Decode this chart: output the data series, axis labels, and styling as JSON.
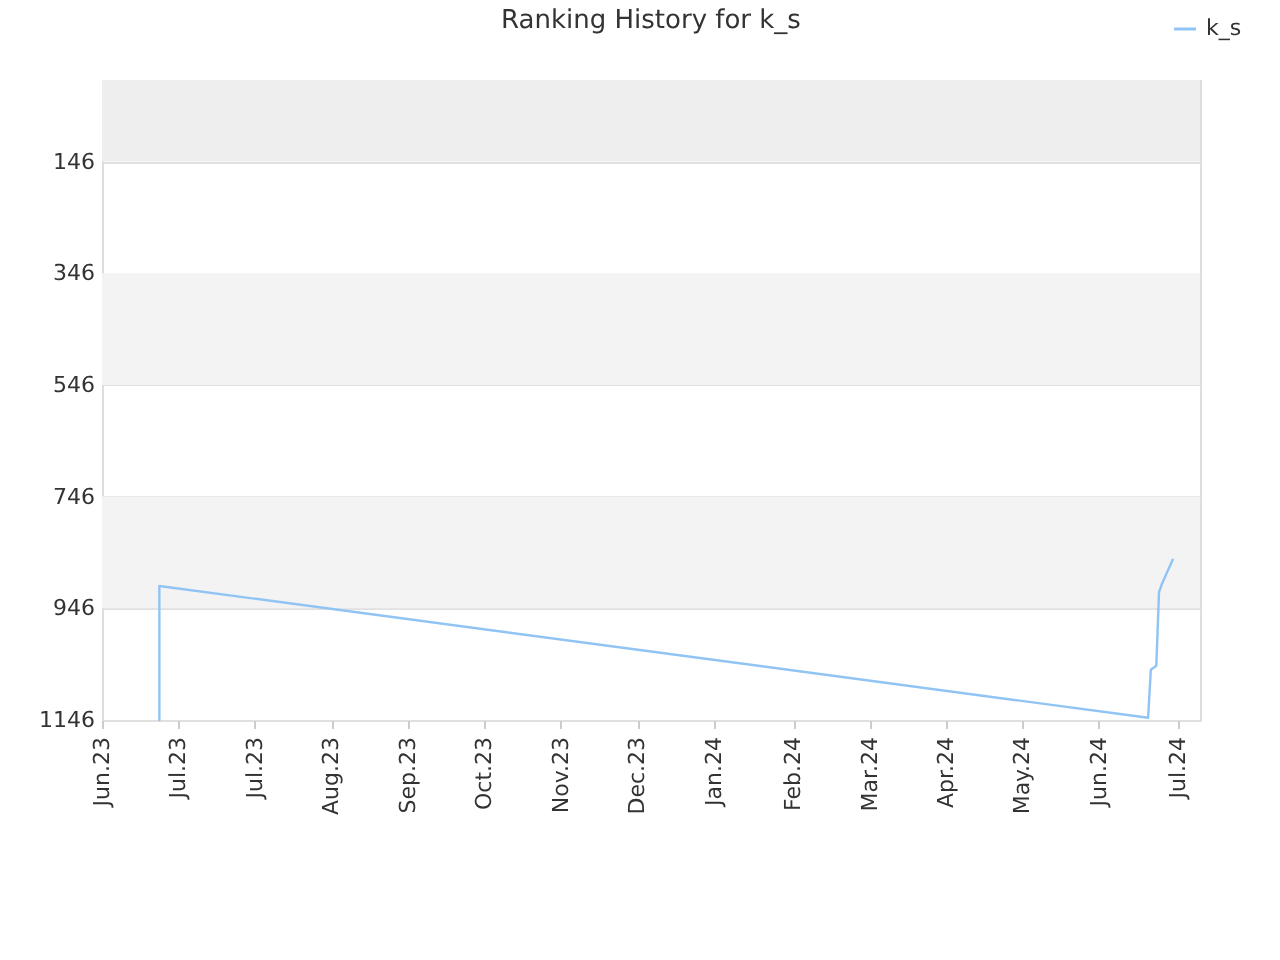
{
  "chart_data": {
    "type": "line",
    "title": "Ranking History for k_s",
    "x": [
      "2023-06-24",
      "2023-06-24",
      "2024-06-20",
      "2024-06-21",
      "2024-06-23",
      "2024-06-24",
      "2024-06-25",
      "2024-06-29"
    ],
    "series": [
      {
        "name": "k_s",
        "color": "#90c4f5",
        "values": [
          1146,
          906,
          1142,
          1056,
          1049,
          917,
          903,
          859
        ]
      }
    ],
    "xlim": [
      "2023-06-03",
      "2024-07-09"
    ],
    "xticks": [
      {
        "value": "2023-06-03",
        "label": "Jun.23"
      },
      {
        "value": "2023-07-01",
        "label": "Jul.23"
      },
      {
        "value": "2023-07-29",
        "label": "Jul.23"
      },
      {
        "value": "2023-08-26",
        "label": "Aug.23"
      },
      {
        "value": "2023-09-23",
        "label": "Sep.23"
      },
      {
        "value": "2023-10-21",
        "label": "Oct.23"
      },
      {
        "value": "2023-11-18",
        "label": "Nov.23"
      },
      {
        "value": "2023-12-16",
        "label": "Dec.23"
      },
      {
        "value": "2024-01-13",
        "label": "Jan.24"
      },
      {
        "value": "2024-02-11",
        "label": "Feb.24"
      },
      {
        "value": "2024-03-10",
        "label": "Mar.24"
      },
      {
        "value": "2024-04-07",
        "label": "Apr.24"
      },
      {
        "value": "2024-05-05",
        "label": "May.24"
      },
      {
        "value": "2024-06-02",
        "label": "Jun.24"
      },
      {
        "value": "2024-07-01",
        "label": "Jul.24"
      }
    ],
    "ylim": [
      1146,
      0
    ],
    "yticks": [
      146,
      346,
      546,
      746,
      946,
      1146
    ],
    "bands": [
      {
        "axis": "y",
        "from": 0,
        "to": 146,
        "color": "#eeeeee"
      },
      {
        "axis": "y",
        "from": 346,
        "to": 546,
        "color": "#f3f3f3"
      },
      {
        "axis": "y",
        "from": 746,
        "to": 946,
        "color": "#f3f3f3"
      }
    ],
    "grid": "y",
    "legend": "top right",
    "marker": "none",
    "line_style": "solid"
  }
}
